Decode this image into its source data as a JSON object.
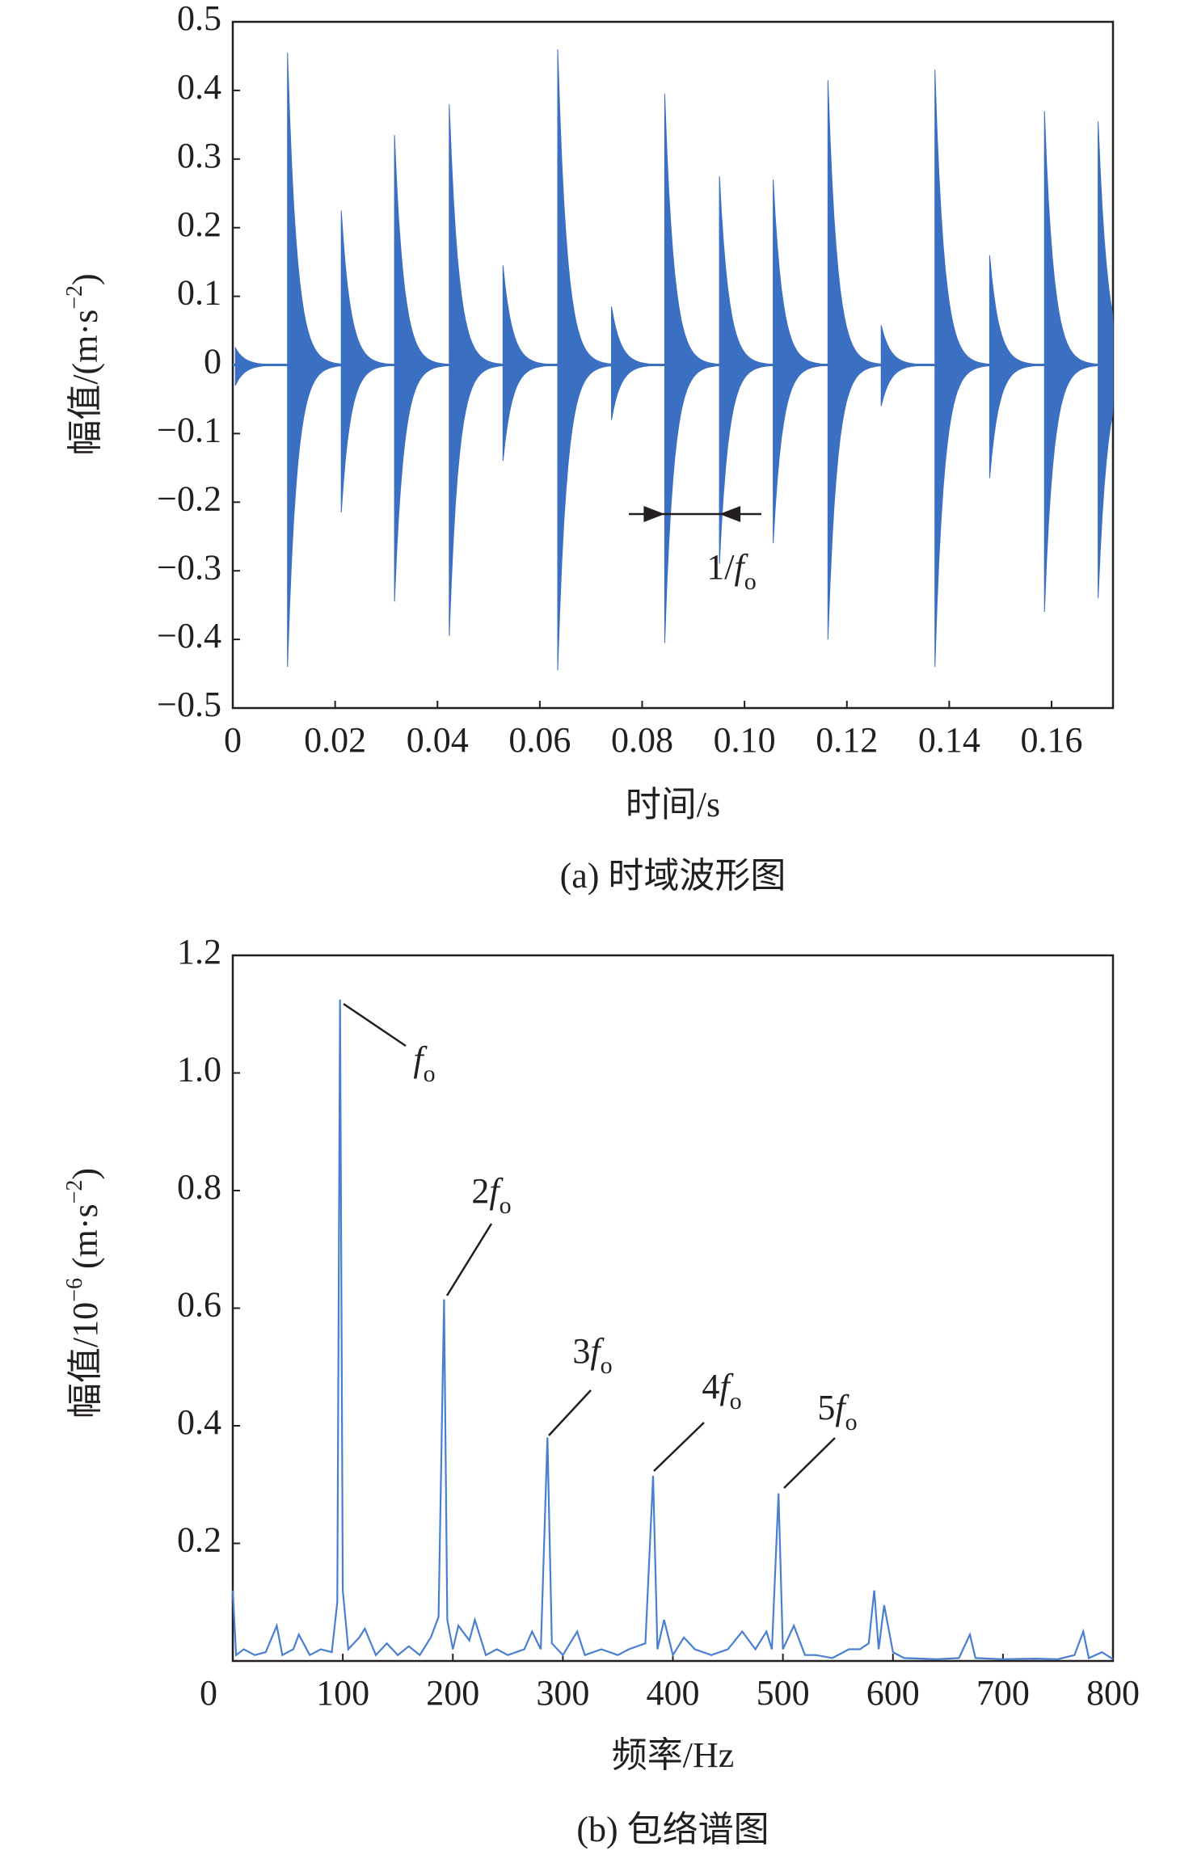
{
  "chart_data": [
    {
      "type": "impulses",
      "xlabel": "时间/s",
      "ylabel_parts": [
        {
          "text": "幅值/(m·s"
        },
        {
          "text": "−2",
          "sup": true
        },
        {
          "text": ")"
        }
      ],
      "caption": "(a) 时域波形图",
      "color": "#3b6fc2",
      "xlim": [
        0,
        0.172
      ],
      "ylim": [
        -0.5,
        0.5
      ],
      "xticks": [
        0,
        0.02,
        0.04,
        0.06,
        0.08,
        {
          "value": 0.1,
          "label": "0.10"
        },
        0.12,
        0.14,
        0.16
      ],
      "yticks": [
        {
          "value": -0.5,
          "label": "−0.5"
        },
        {
          "value": -0.4,
          "label": "−0.4"
        },
        {
          "value": -0.3,
          "label": "−0.3"
        },
        {
          "value": -0.2,
          "label": "−0.2"
        },
        {
          "value": -0.1,
          "label": "−0.1"
        },
        0,
        0.1,
        0.2,
        0.3,
        0.4,
        0.5
      ],
      "x": [
        0.0005,
        0.0107,
        0.0212,
        0.0316,
        0.0423,
        0.0528,
        0.0635,
        0.074,
        0.0844,
        0.0951,
        0.1056,
        0.1163,
        0.1267,
        0.1372,
        0.1479,
        0.1586,
        0.1691
      ],
      "series": [
        {
          "name": "positive",
          "values": [
            0.025,
            0.455,
            0.225,
            0.335,
            0.38,
            0.145,
            0.46,
            0.085,
            0.395,
            0.275,
            0.27,
            0.415,
            0.058,
            0.43,
            0.16,
            0.37,
            0.355
          ]
        },
        {
          "name": "negative",
          "values": [
            -0.03,
            -0.44,
            -0.215,
            -0.345,
            -0.395,
            -0.14,
            -0.445,
            -0.08,
            -0.405,
            -0.29,
            -0.26,
            -0.4,
            -0.06,
            -0.44,
            -0.165,
            -0.36,
            -0.34
          ]
        }
      ],
      "annotations": [
        {
          "text": "1/",
          "var": "f",
          "sub": "o"
        }
      ]
    },
    {
      "type": "line",
      "xlabel": "频率/Hz",
      "ylabel_parts": [
        {
          "text": "幅值/10"
        },
        {
          "text": "−6",
          "sup": true
        },
        {
          "text": " (m·s"
        },
        {
          "text": "−2",
          "sup": true
        },
        {
          "text": ")"
        }
      ],
      "caption": "(b) 包络谱图",
      "color": "#4a7fd0",
      "xlim": [
        0,
        800
      ],
      "ylim": [
        0,
        1.2
      ],
      "xticks": [
        0,
        100,
        200,
        300,
        400,
        500,
        600,
        700,
        800
      ],
      "yticks": [
        0.2,
        0.4,
        0.6,
        0.8,
        {
          "value": 1,
          "label": "1.0"
        },
        1.2
      ],
      "x": [
        0,
        3,
        10,
        20,
        30,
        40,
        45,
        55,
        60,
        70,
        80,
        90,
        95,
        97.5,
        100,
        105,
        115,
        120,
        130,
        140,
        150,
        160,
        170,
        180,
        187,
        192,
        195,
        200,
        205,
        215,
        220,
        230,
        240,
        250,
        265,
        272,
        280,
        286,
        290,
        300,
        313,
        320,
        335,
        350,
        360,
        375,
        382,
        386,
        392,
        400,
        410,
        420,
        435,
        450,
        463,
        475,
        485,
        490,
        496,
        500,
        510,
        520,
        530,
        545,
        560,
        570,
        578,
        583,
        587,
        592,
        600,
        610,
        640,
        660,
        670,
        675,
        700,
        730,
        750,
        765,
        773,
        778,
        790,
        800
      ],
      "values": [
        0.12,
        0.01,
        0.02,
        0.01,
        0.015,
        0.06,
        0.01,
        0.02,
        0.045,
        0.01,
        0.02,
        0.015,
        0.1,
        1.125,
        0.12,
        0.02,
        0.04,
        0.055,
        0.01,
        0.03,
        0.01,
        0.025,
        0.01,
        0.04,
        0.075,
        0.615,
        0.07,
        0.02,
        0.06,
        0.035,
        0.07,
        0.01,
        0.02,
        0.01,
        0.02,
        0.05,
        0.02,
        0.38,
        0.03,
        0.01,
        0.05,
        0.01,
        0.02,
        0.01,
        0.02,
        0.03,
        0.315,
        0.02,
        0.07,
        0.01,
        0.04,
        0.02,
        0.01,
        0.02,
        0.05,
        0.02,
        0.05,
        0.02,
        0.285,
        0.02,
        0.06,
        0.01,
        0.01,
        0.005,
        0.02,
        0.02,
        0.03,
        0.12,
        0.02,
        0.095,
        0.015,
        0.005,
        0.003,
        0.005,
        0.045,
        0.005,
        0.003,
        0.004,
        0.003,
        0.01,
        0.05,
        0.005,
        0.015,
        0.003
      ],
      "annotations": [
        {
          "var": "f",
          "sub": "o"
        },
        {
          "coef": "2",
          "var": "f",
          "sub": "o"
        },
        {
          "coef": "3",
          "var": "f",
          "sub": "o"
        },
        {
          "coef": "4",
          "var": "f",
          "sub": "o"
        },
        {
          "coef": "5",
          "var": "f",
          "sub": "o"
        }
      ]
    }
  ]
}
